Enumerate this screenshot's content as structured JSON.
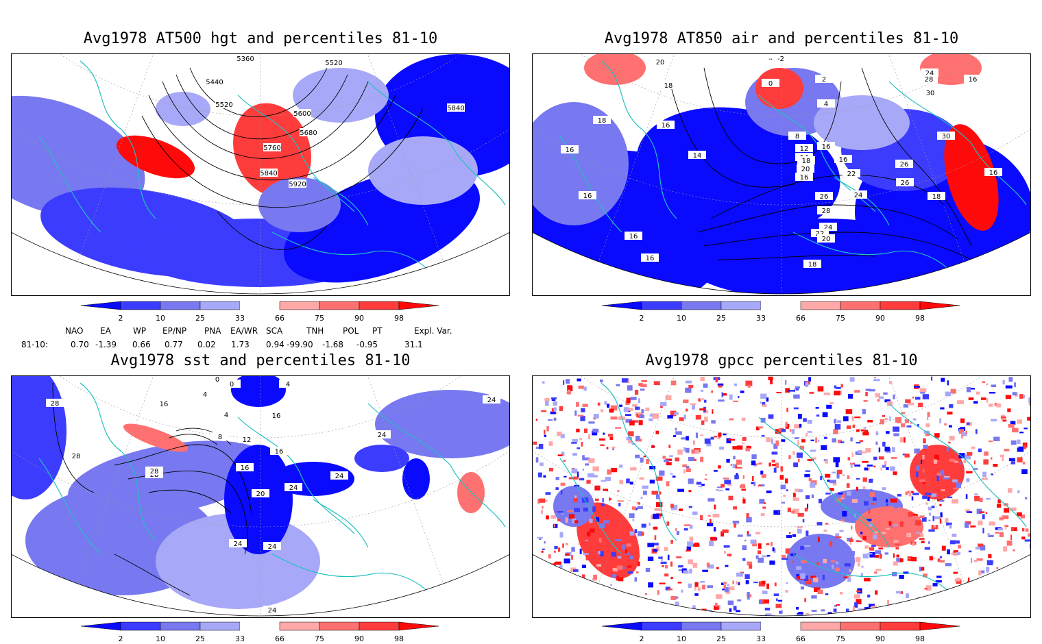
{
  "colors": {
    "p2": "#0a0aff",
    "p10": "#3c3cff",
    "p25": "#7878f0",
    "p33": "#a8a8f8",
    "p66": "#ffa8a8",
    "p75": "#ff7070",
    "p90": "#ff3c3c",
    "p98": "#ff0a0a",
    "coast": "#20c0c0",
    "contour": "#000000"
  },
  "colorbar_labels": [
    "2",
    "10",
    "25",
    "33",
    "66",
    "75",
    "90",
    "98"
  ],
  "panels": [
    {
      "title": "Avg1978 AT500 hgt and percentiles 81-10",
      "contour_labels": [
        "5360",
        "5520",
        "5440",
        "5520",
        "5600",
        "5680",
        "5760",
        "5840",
        "5840",
        "5920"
      ]
    },
    {
      "title": "Avg1978 AT850 air and percentiles 81-10",
      "contour_labels": [
        "-4",
        "-2",
        "20",
        "0",
        "2",
        "18",
        "24",
        "28",
        "16",
        "30",
        "4",
        "18",
        "16",
        "8",
        "30",
        "16",
        "14",
        "12",
        "14",
        "16",
        "26",
        "18",
        "20",
        "22",
        "16",
        "26",
        "26",
        "24",
        "18",
        "16",
        "28",
        "24",
        "22",
        "20",
        "16",
        "16",
        "18",
        "16",
        "16"
      ]
    },
    {
      "title": "Avg1978 sst and percentiles 81-10",
      "contour_labels": [
        "28",
        "16",
        "0",
        "4",
        "0",
        "4",
        "24",
        "4",
        "8",
        "28",
        "12",
        "16",
        "16",
        "16",
        "24",
        "28",
        "20",
        "24",
        "24",
        "24",
        "24",
        "28",
        "24"
      ]
    },
    {
      "title": "Avg1978 gpcc percentiles 81-10",
      "contour_labels": []
    }
  ],
  "indices": {
    "headers": [
      "NAO",
      "EA",
      "WP",
      "EP/NP",
      "PNA",
      "EA/WR",
      "SCA",
      "TNH",
      "POL",
      "PT",
      "Expl. Var."
    ],
    "row_label": "81-10:",
    "values": [
      "0.70",
      "-1.39",
      "0.66",
      "0.77",
      "0.02",
      "1.73",
      "0.94",
      "-99.90",
      "-1.68",
      "-0.95",
      "31.1"
    ]
  }
}
